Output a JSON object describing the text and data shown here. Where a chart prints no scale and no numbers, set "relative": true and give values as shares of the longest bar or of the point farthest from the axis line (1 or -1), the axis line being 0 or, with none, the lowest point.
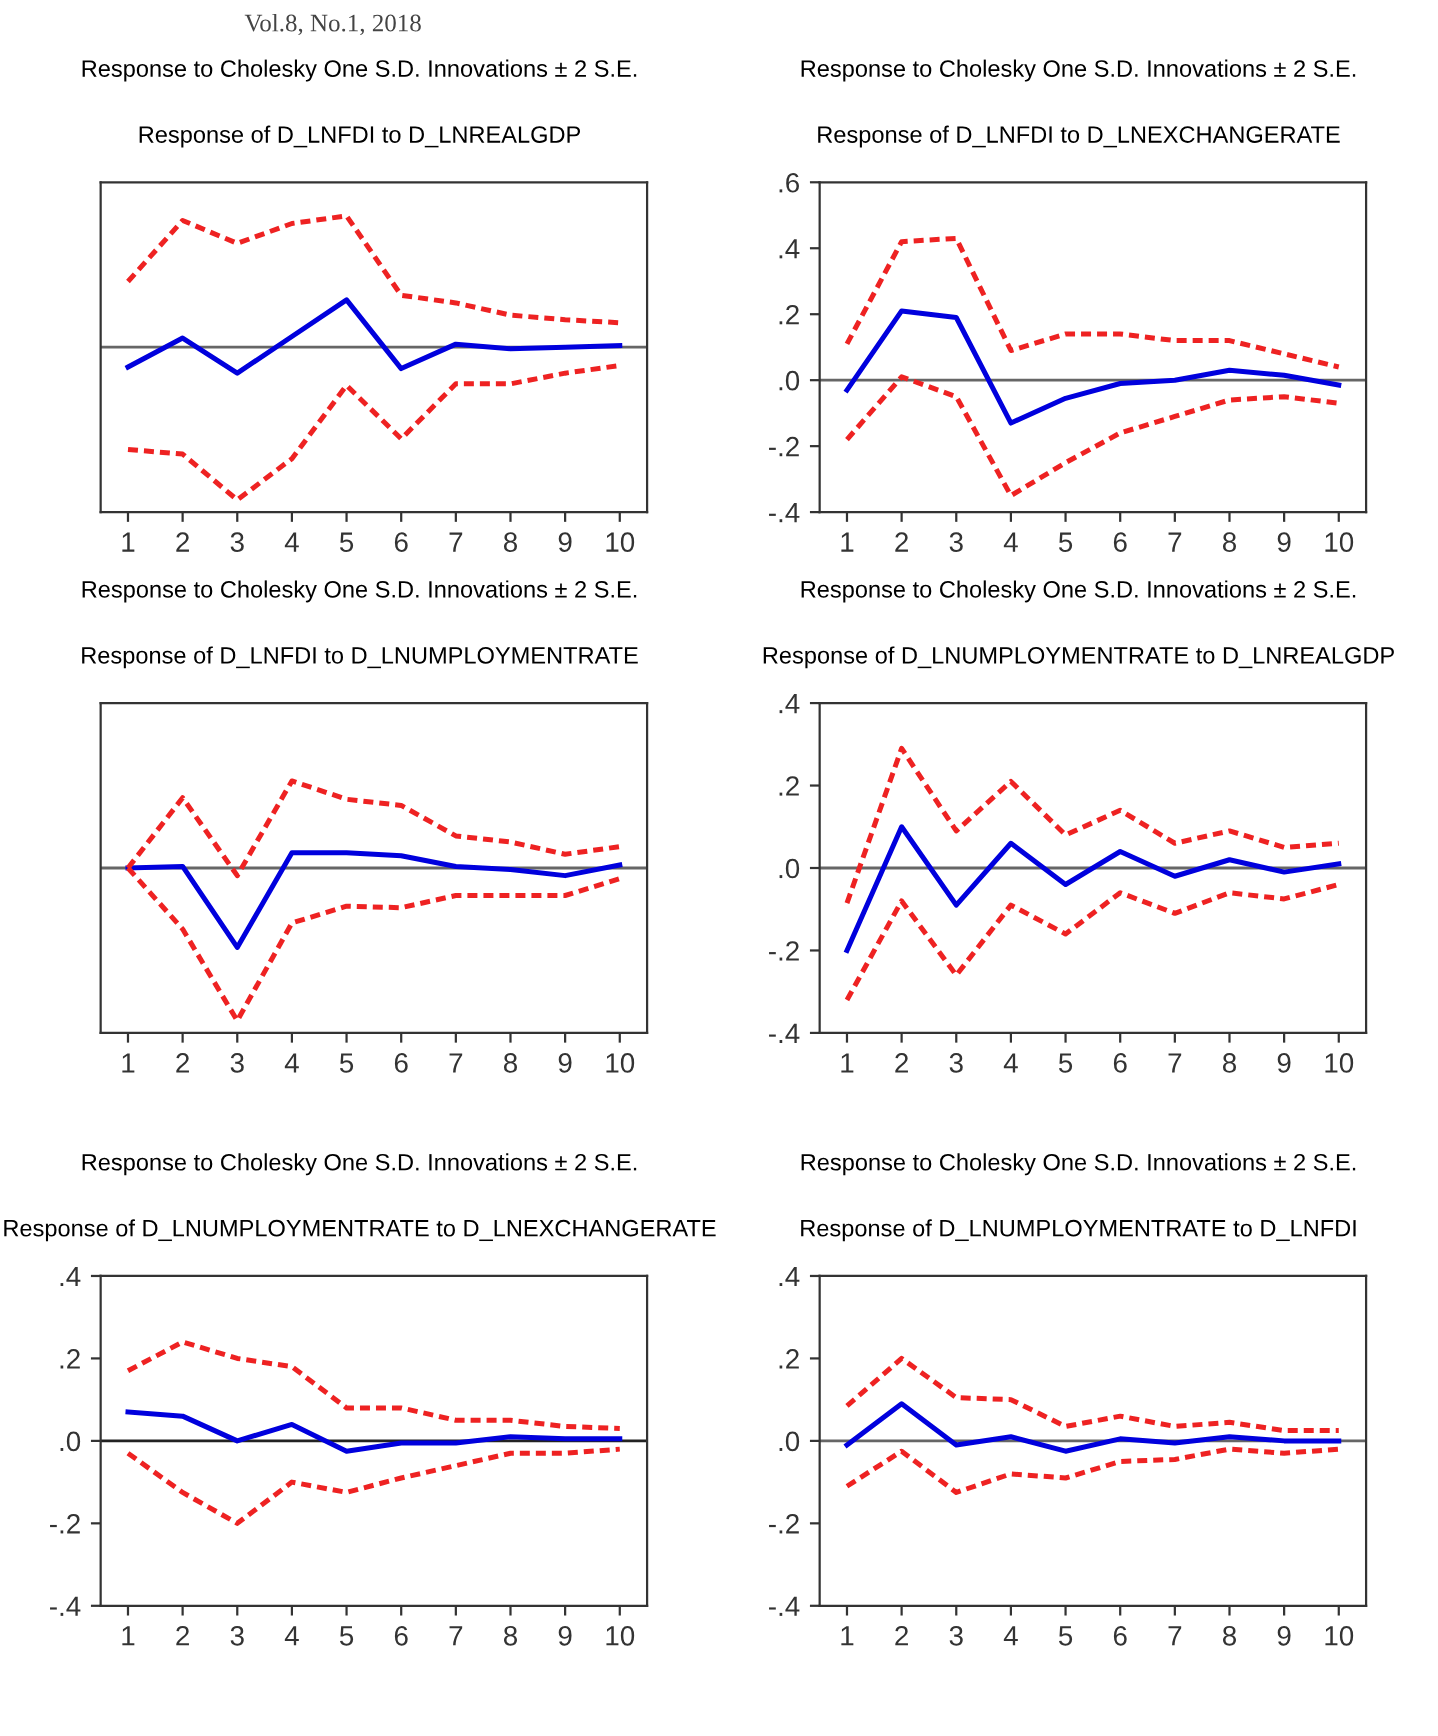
{
  "chart_data": [
    {
      "type": "line",
      "title": "Response to Cholesky One S.D. Innovations ± 2 S.E.",
      "subtitle": "Response of D_LNFDI to D_LNREALGDP",
      "annotations": [
        "Vol.8, No.1, 2018"
      ],
      "relative": true,
      "tick_labels": "x",
      "categories": [
        "1",
        "2",
        "3",
        "4",
        "5",
        "6",
        "7",
        "8",
        "9",
        "10"
      ],
      "grid": false,
      "ref_lines": [
        {
          "axis": "y",
          "value": 0,
          "color": "#666666"
        }
      ],
      "series": [
        {
          "color": "#0000dd",
          "line_style": "solid",
          "values": [
            -0.13,
            0.06,
            -0.17,
            0.07,
            0.31,
            -0.14,
            0.02,
            -0.01,
            0.0,
            0.01
          ]
        },
        {
          "color": "#ee2222",
          "line_style": "dashed",
          "values": [
            0.43,
            0.83,
            0.68,
            0.81,
            0.86,
            0.34,
            0.29,
            0.21,
            0.18,
            0.16
          ]
        },
        {
          "color": "#ee2222",
          "line_style": "dashed",
          "values": [
            -0.67,
            -0.7,
            -1,
            -0.73,
            -0.25,
            -0.6,
            -0.24,
            -0.24,
            -0.17,
            -0.12
          ]
        }
      ]
    },
    {
      "type": "line",
      "title": "Response to Cholesky One S.D. Innovations ± 2 S.E.",
      "subtitle": "Response of D_LNFDI to D_LNEXCHANGERATE",
      "categories": [
        "1",
        "2",
        "3",
        "4",
        "5",
        "6",
        "7",
        "8",
        "9",
        "10"
      ],
      "grid": false,
      "ylim": [
        -0.4,
        0.6
      ],
      "yticks": [
        {
          "value": -0.4,
          "label": "-.4"
        },
        {
          "value": -0.2,
          "label": "-.2"
        },
        {
          "value": 0,
          "label": ".0"
        },
        {
          "value": 0.2,
          "label": ".2"
        },
        {
          "value": 0.4,
          "label": ".4"
        },
        {
          "value": 0.6,
          "label": ".6"
        }
      ],
      "ref_lines": [
        {
          "axis": "y",
          "value": 0,
          "color": "#666666"
        }
      ],
      "series": [
        {
          "color": "#0000dd",
          "line_style": "solid",
          "values": [
            -0.03,
            0.21,
            0.19,
            -0.13,
            -0.055,
            -0.01,
            0.0,
            0.03,
            0.015,
            -0.015
          ]
        },
        {
          "color": "#ee2222",
          "line_style": "dashed",
          "values": [
            0.11,
            0.42,
            0.43,
            0.09,
            0.14,
            0.14,
            0.12,
            0.12,
            0.08,
            0.04
          ]
        },
        {
          "color": "#ee2222",
          "line_style": "dashed",
          "values": [
            -0.18,
            0.01,
            -0.05,
            -0.35,
            -0.25,
            -0.16,
            -0.11,
            -0.06,
            -0.05,
            -0.07
          ]
        }
      ]
    },
    {
      "type": "line",
      "title": "Response to Cholesky One S.D. Innovations ± 2 S.E.",
      "subtitle": "Response of D_LNFDI to D_LNUMPLOYMENTRATE",
      "relative": true,
      "tick_labels": "x",
      "categories": [
        "1",
        "2",
        "3",
        "4",
        "5",
        "6",
        "7",
        "8",
        "9",
        "10"
      ],
      "grid": false,
      "ref_lines": [
        {
          "axis": "y",
          "value": 0,
          "color": "#666666"
        }
      ],
      "series": [
        {
          "color": "#0000dd",
          "line_style": "solid",
          "values": [
            0,
            0.01,
            -0.52,
            0.1,
            0.1,
            0.08,
            0.01,
            -0.01,
            -0.05,
            0.02
          ]
        },
        {
          "color": "#ee2222",
          "line_style": "dashed",
          "values": [
            0,
            0.46,
            -0.05,
            0.57,
            0.45,
            0.41,
            0.21,
            0.17,
            0.09,
            0.14
          ]
        },
        {
          "color": "#ee2222",
          "line_style": "dashed",
          "values": [
            0,
            -0.4,
            -1,
            -0.36,
            -0.25,
            -0.26,
            -0.18,
            -0.18,
            -0.18,
            -0.07
          ]
        }
      ]
    },
    {
      "type": "line",
      "title": "Response to Cholesky One S.D. Innovations ± 2 S.E.",
      "subtitle": "Response of D_LNUMPLOYMENTRATE to D_LNREALGDP",
      "categories": [
        "1",
        "2",
        "3",
        "4",
        "5",
        "6",
        "7",
        "8",
        "9",
        "10"
      ],
      "grid": false,
      "ylim": [
        -0.4,
        0.4
      ],
      "yticks": [
        {
          "value": -0.4,
          "label": "-.4"
        },
        {
          "value": -0.2,
          "label": "-.2"
        },
        {
          "value": 0,
          "label": ".0"
        },
        {
          "value": 0.2,
          "label": ".2"
        },
        {
          "value": 0.4,
          "label": ".4"
        }
      ],
      "ref_lines": [
        {
          "axis": "y",
          "value": 0,
          "color": "#666666"
        }
      ],
      "series": [
        {
          "color": "#0000dd",
          "line_style": "solid",
          "values": [
            -0.2,
            0.1,
            -0.09,
            0.06,
            -0.04,
            0.04,
            -0.02,
            0.02,
            -0.01,
            0.01
          ]
        },
        {
          "color": "#ee2222",
          "line_style": "dashed",
          "values": [
            -0.085,
            0.29,
            0.09,
            0.21,
            0.08,
            0.14,
            0.06,
            0.09,
            0.05,
            0.06
          ]
        },
        {
          "color": "#ee2222",
          "line_style": "dashed",
          "values": [
            -0.32,
            -0.08,
            -0.26,
            -0.09,
            -0.16,
            -0.06,
            -0.11,
            -0.06,
            -0.075,
            -0.04
          ]
        }
      ]
    },
    {
      "type": "line",
      "title": "Response to Cholesky One S.D. Innovations ± 2 S.E.",
      "subtitle": "Response of D_LNUMPLOYMENTRATE to D_LNEXCHANGERATE",
      "categories": [
        "1",
        "2",
        "3",
        "4",
        "5",
        "6",
        "7",
        "8",
        "9",
        "10"
      ],
      "grid": false,
      "ylim": [
        -0.4,
        0.4
      ],
      "yticks": [
        {
          "value": -0.4,
          "label": "-.4"
        },
        {
          "value": -0.2,
          "label": "-.2"
        },
        {
          "value": 0,
          "label": ".0"
        },
        {
          "value": 0.2,
          "label": ".2"
        },
        {
          "value": 0.4,
          "label": ".4"
        }
      ],
      "ref_lines": [
        {
          "axis": "y",
          "value": 0,
          "color": "#222222"
        }
      ],
      "series": [
        {
          "color": "#0000dd",
          "line_style": "solid",
          "values": [
            0.07,
            0.06,
            0.0,
            0.04,
            -0.025,
            -0.005,
            -0.005,
            0.01,
            0.005,
            0.005
          ]
        },
        {
          "color": "#ee2222",
          "line_style": "dashed",
          "values": [
            0.17,
            0.24,
            0.2,
            0.18,
            0.08,
            0.08,
            0.05,
            0.05,
            0.035,
            0.03
          ]
        },
        {
          "color": "#ee2222",
          "line_style": "dashed",
          "values": [
            -0.03,
            -0.125,
            -0.2,
            -0.1,
            -0.125,
            -0.09,
            -0.06,
            -0.03,
            -0.03,
            -0.02
          ]
        }
      ]
    },
    {
      "type": "line",
      "title": "Response to Cholesky One S.D. Innovations ± 2 S.E.",
      "subtitle": "Response of D_LNUMPLOYMENTRATE to D_LNFDI",
      "categories": [
        "1",
        "2",
        "3",
        "4",
        "5",
        "6",
        "7",
        "8",
        "9",
        "10"
      ],
      "grid": false,
      "ylim": [
        -0.4,
        0.4
      ],
      "yticks": [
        {
          "value": -0.4,
          "label": "-.4"
        },
        {
          "value": -0.2,
          "label": "-.2"
        },
        {
          "value": 0,
          "label": ".0"
        },
        {
          "value": 0.2,
          "label": ".2"
        },
        {
          "value": 0.4,
          "label": ".4"
        }
      ],
      "ref_lines": [
        {
          "axis": "y",
          "value": 0,
          "color": "#666666"
        }
      ],
      "series": [
        {
          "color": "#0000dd",
          "line_style": "solid",
          "values": [
            -0.01,
            0.09,
            -0.01,
            0.01,
            -0.025,
            0.005,
            -0.005,
            0.01,
            0.0,
            0.0
          ]
        },
        {
          "color": "#ee2222",
          "line_style": "dashed",
          "values": [
            0.085,
            0.2,
            0.105,
            0.1,
            0.035,
            0.06,
            0.035,
            0.045,
            0.025,
            0.025
          ]
        },
        {
          "color": "#ee2222",
          "line_style": "dashed",
          "values": [
            -0.11,
            -0.025,
            -0.125,
            -0.08,
            -0.09,
            -0.05,
            -0.045,
            -0.02,
            -0.03,
            -0.02
          ]
        }
      ]
    }
  ]
}
